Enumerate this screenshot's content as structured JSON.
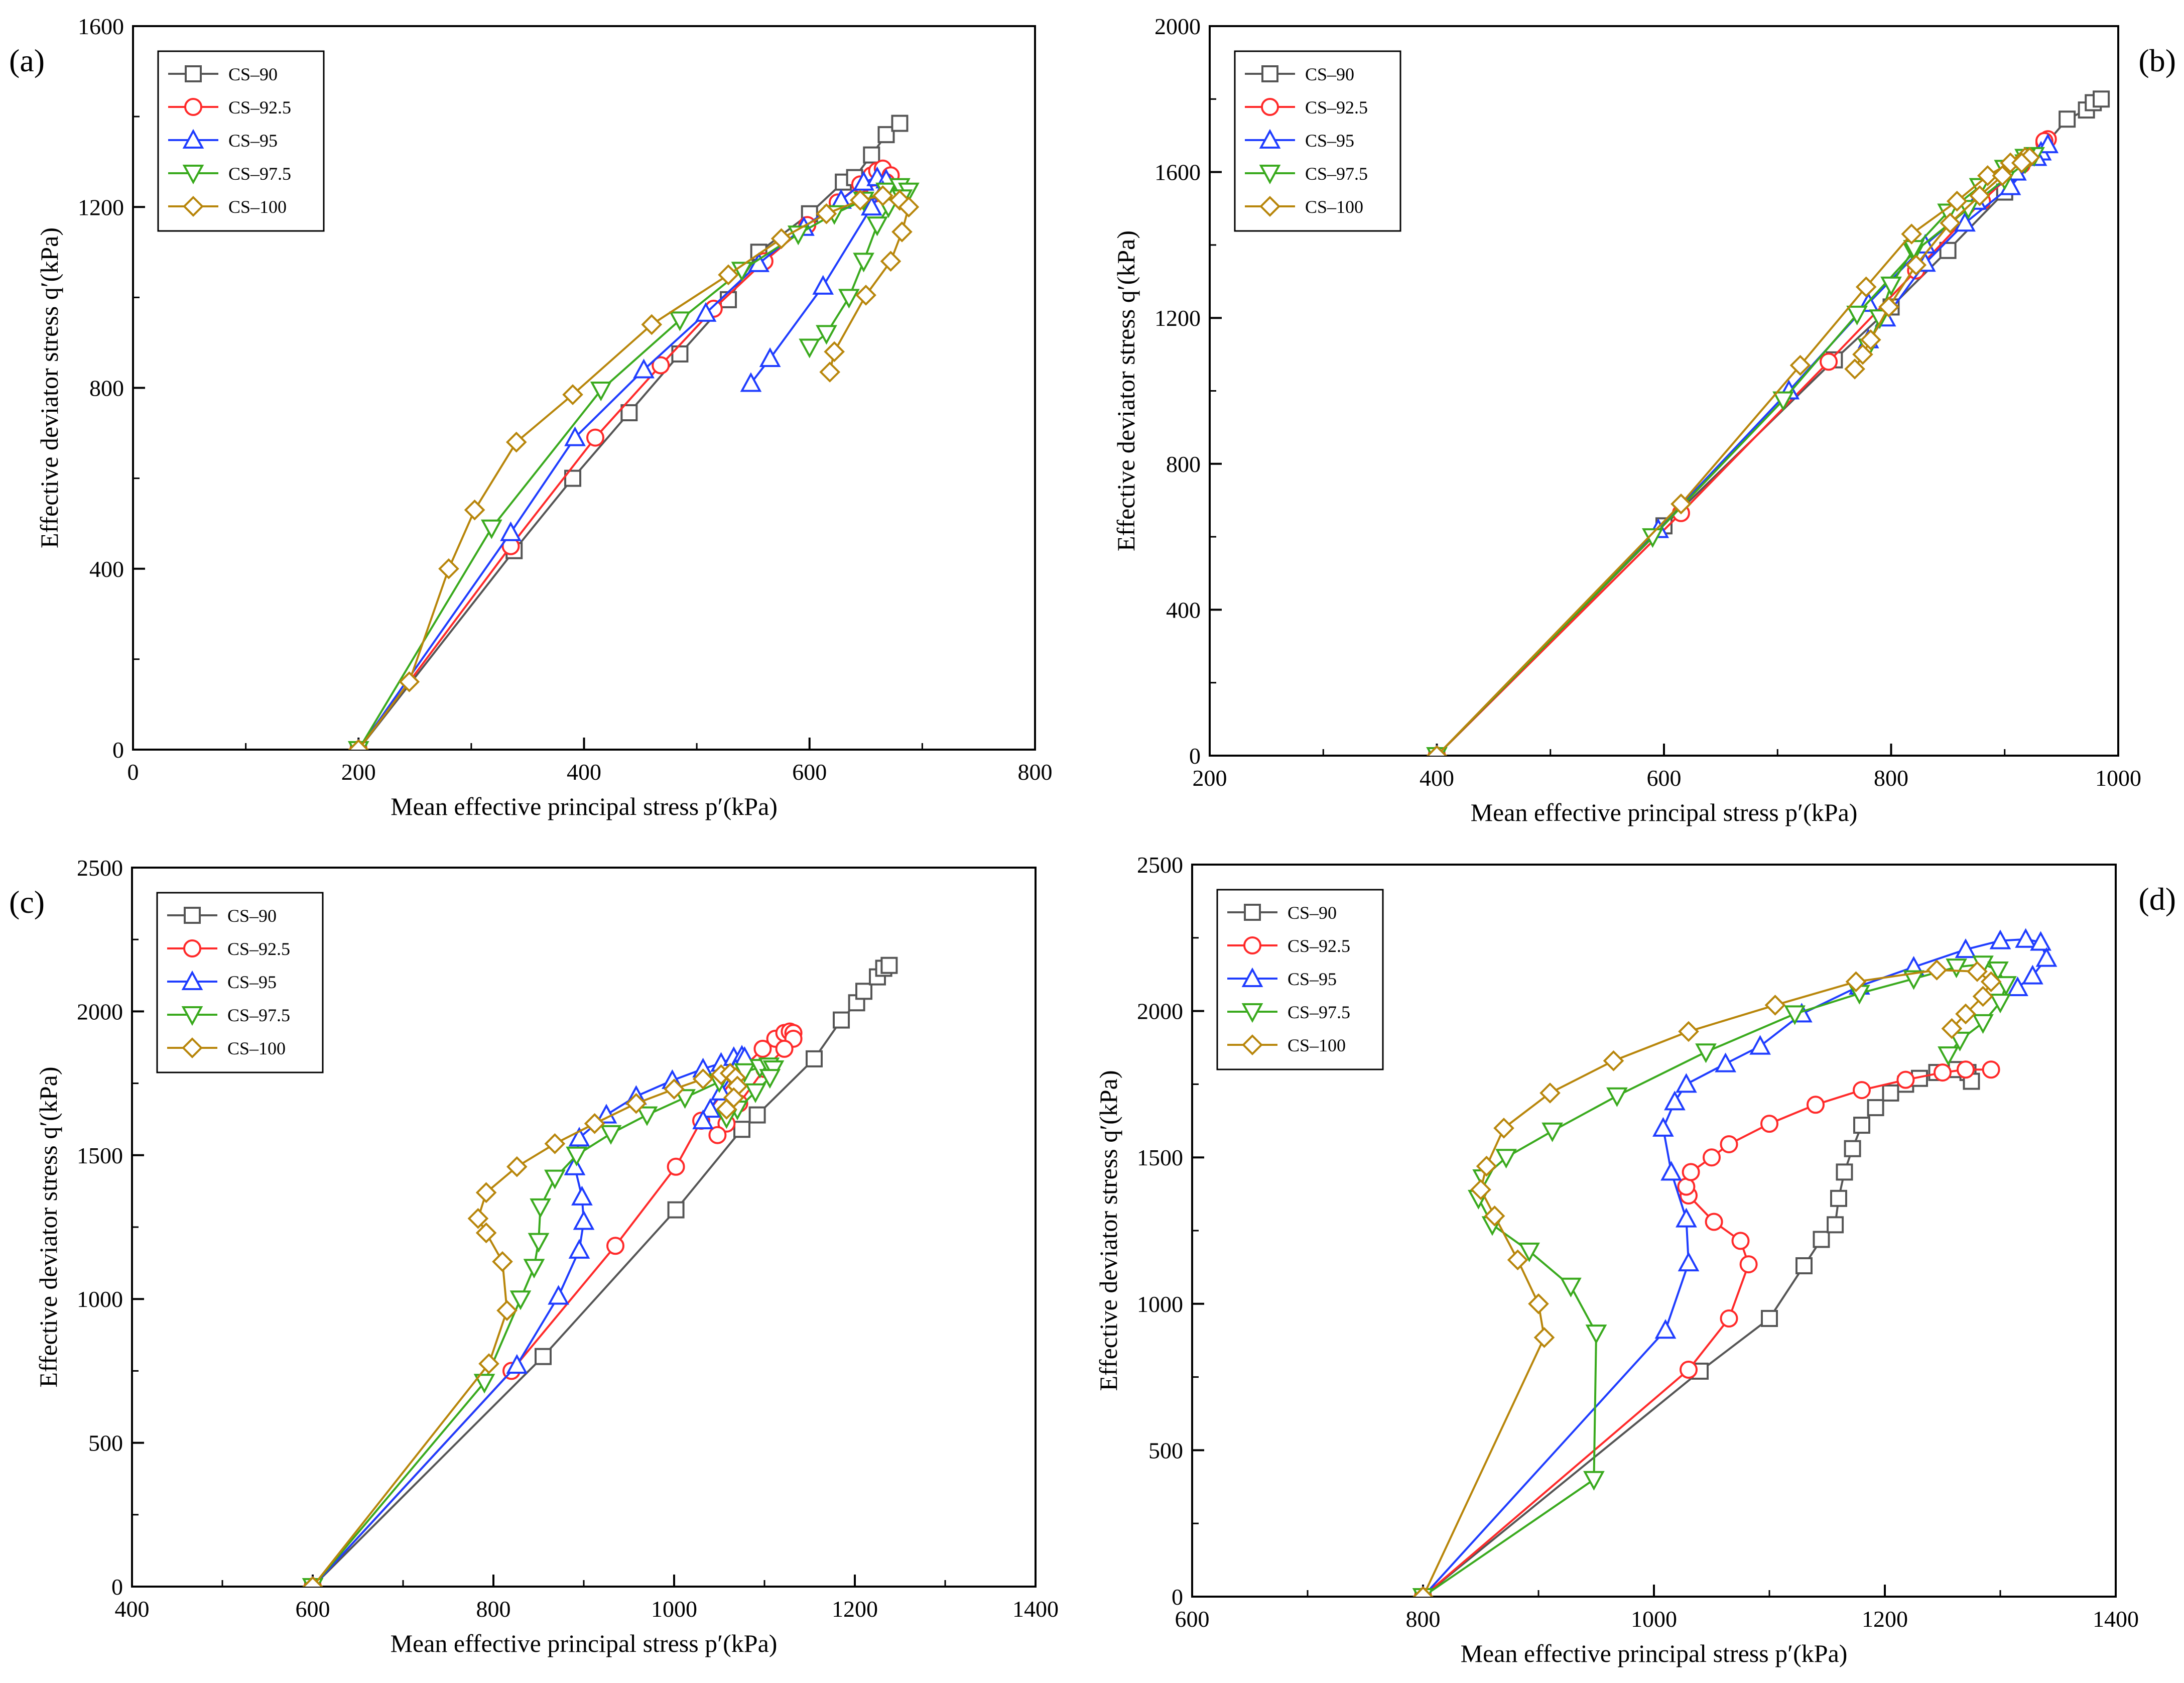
{
  "figure_title": "",
  "colors": {
    "CS-90": "#555555",
    "CS-92.5": "#ff2a2a",
    "CS-95": "#1f3dff",
    "CS-97.5": "#3aaa1e",
    "CS-100": "#b8860b"
  },
  "chart_data": [
    {
      "panel_label": "(a)",
      "type": "line",
      "xlabel": "Mean effective principal stress p′(kPa)",
      "ylabel": "Effective deviator stress q′(kPa)",
      "xlim": [
        0,
        800
      ],
      "ylim": [
        0,
        1600
      ],
      "xticks": [
        "0",
        "200",
        "400",
        "600",
        "800"
      ],
      "yticks": [
        "0",
        "400",
        "800",
        "1200",
        "1600"
      ],
      "legend_position": "top-left",
      "series": [
        {
          "name": "CS–90",
          "marker": "square",
          "x": [
            200,
            338,
            390,
            440,
            485,
            528,
            555,
            600,
            630,
            640,
            655,
            668,
            680
          ],
          "y": [
            0,
            440,
            600,
            745,
            875,
            995,
            1100,
            1185,
            1255,
            1265,
            1315,
            1360,
            1385
          ]
        },
        {
          "name": "CS–92.5",
          "marker": "circle",
          "x": [
            200,
            335,
            410,
            468,
            515,
            560,
            598,
            625,
            645,
            655,
            660,
            665,
            672,
            668,
            660,
            658
          ],
          "y": [
            0,
            450,
            690,
            850,
            975,
            1080,
            1160,
            1210,
            1250,
            1270,
            1280,
            1285,
            1270,
            1255,
            1240,
            1230
          ]
        },
        {
          "name": "CS–95",
          "marker": "triangle-up",
          "x": [
            200,
            335,
            392,
            453,
            508,
            555,
            595,
            628,
            648,
            660,
            668,
            665,
            655,
            612,
            565,
            548
          ],
          "y": [
            0,
            480,
            690,
            840,
            965,
            1075,
            1155,
            1215,
            1255,
            1265,
            1260,
            1235,
            1200,
            1025,
            865,
            810
          ]
        },
        {
          "name": "CS–97.5",
          "marker": "triangle-down",
          "x": [
            200,
            318,
            415,
            485,
            540,
            590,
            622,
            648,
            668,
            680,
            688,
            682,
            670,
            660,
            648,
            635,
            615,
            600
          ],
          "y": [
            0,
            490,
            795,
            950,
            1060,
            1140,
            1185,
            1215,
            1235,
            1245,
            1235,
            1220,
            1200,
            1160,
            1080,
            1000,
            920,
            890
          ]
        },
        {
          "name": "CS–100",
          "marker": "diamond",
          "x": [
            200,
            245,
            280,
            303,
            340,
            390,
            460,
            528,
            575,
            615,
            645,
            665,
            680,
            688,
            682,
            672,
            650,
            622,
            618
          ],
          "y": [
            0,
            150,
            400,
            530,
            680,
            785,
            940,
            1050,
            1130,
            1185,
            1215,
            1225,
            1215,
            1200,
            1145,
            1080,
            1005,
            880,
            835
          ]
        }
      ]
    },
    {
      "panel_label": "(b)",
      "type": "line",
      "xlabel": "Mean effective principal stress p′(kPa)",
      "ylabel": "Effective deviator stress q′(kPa)",
      "xlim": [
        200,
        1000
      ],
      "ylim": [
        0,
        2000
      ],
      "xticks": [
        "200",
        "400",
        "600",
        "800",
        "1000"
      ],
      "yticks": [
        "0",
        "400",
        "800",
        "1200",
        "1600",
        "2000"
      ],
      "legend_position": "top-left",
      "series": [
        {
          "name": "CS–90",
          "marker": "square",
          "x": [
            400,
            600,
            750,
            800,
            850,
            900,
            955,
            972,
            978,
            985
          ],
          "y": [
            0,
            630,
            1085,
            1230,
            1385,
            1545,
            1745,
            1770,
            1790,
            1800
          ]
        },
        {
          "name": "CS–92.5",
          "marker": "circle",
          "x": [
            400,
            615,
            745,
            822,
            880,
            915,
            935,
            938,
            935
          ],
          "y": [
            0,
            665,
            1080,
            1330,
            1520,
            1620,
            1680,
            1690,
            1685
          ]
        },
        {
          "name": "CS–95",
          "marker": "triangle-up",
          "x": [
            400,
            595,
            710,
            780,
            830,
            875,
            910,
            932,
            938,
            928,
            905,
            865,
            830,
            795,
            780
          ],
          "y": [
            0,
            620,
            1000,
            1240,
            1400,
            1520,
            1600,
            1655,
            1675,
            1640,
            1560,
            1460,
            1350,
            1200,
            1140
          ]
        },
        {
          "name": "CS–97.5",
          "marker": "triangle-down",
          "x": [
            400,
            590,
            705,
            770,
            820,
            868,
            900,
            918,
            926,
            918,
            900,
            878,
            850,
            820,
            800,
            790,
            780
          ],
          "y": [
            0,
            600,
            975,
            1210,
            1380,
            1500,
            1580,
            1625,
            1645,
            1640,
            1610,
            1560,
            1490,
            1390,
            1290,
            1200,
            1120
          ]
        },
        {
          "name": "CS–100",
          "marker": "diamond",
          "x": [
            400,
            615,
            720,
            778,
            818,
            858,
            885,
            905,
            918,
            922,
            915,
            898,
            878,
            852,
            822,
            798,
            782,
            775,
            768
          ],
          "y": [
            0,
            690,
            1070,
            1285,
            1430,
            1520,
            1590,
            1625,
            1640,
            1640,
            1625,
            1590,
            1535,
            1460,
            1345,
            1230,
            1140,
            1100,
            1060
          ]
        }
      ]
    },
    {
      "panel_label": "(c)",
      "type": "line",
      "xlabel": "Mean effective principal stress p′(kPa)",
      "ylabel": "Effective deviator stress q′(kPa)",
      "xlim": [
        400,
        1400
      ],
      "ylim": [
        0,
        2500
      ],
      "xticks": [
        "400",
        "600",
        "800",
        "1000",
        "1200",
        "1400"
      ],
      "yticks": [
        "0",
        "500",
        "1000",
        "1500",
        "2000",
        "2500"
      ],
      "legend_position": "top-left",
      "series": [
        {
          "name": "CS–90",
          "marker": "square",
          "x": [
            600,
            855,
            1002,
            1075,
            1092,
            1155,
            1185,
            1202,
            1210,
            1225,
            1232,
            1238
          ],
          "y": [
            0,
            800,
            1310,
            1590,
            1640,
            1835,
            1970,
            2030,
            2070,
            2120,
            2150,
            2160
          ]
        },
        {
          "name": "CS–92.5",
          "marker": "circle",
          "x": [
            600,
            820,
            935,
            1002,
            1030,
            1072,
            1098,
            1112,
            1122,
            1128,
            1132,
            1132,
            1122,
            1100,
            1072,
            1058,
            1048
          ],
          "y": [
            0,
            750,
            1185,
            1460,
            1620,
            1790,
            1870,
            1905,
            1925,
            1930,
            1925,
            1905,
            1870,
            1800,
            1680,
            1610,
            1570
          ]
        },
        {
          "name": "CS–95",
          "marker": "triangle-up",
          "x": [
            600,
            826,
            872,
            895,
            900,
            898,
            890,
            895,
            925,
            958,
            998,
            1032,
            1052,
            1066,
            1075,
            1078,
            1068,
            1052,
            1040,
            1032
          ],
          "y": [
            0,
            770,
            1010,
            1170,
            1270,
            1355,
            1460,
            1560,
            1640,
            1705,
            1760,
            1800,
            1820,
            1840,
            1845,
            1840,
            1800,
            1720,
            1660,
            1620
          ]
        },
        {
          "name": "CS–97.5",
          "marker": "triangle-down",
          "x": [
            600,
            790,
            830,
            845,
            850,
            852,
            868,
            892,
            930,
            970,
            1012,
            1050,
            1078,
            1095,
            1105,
            1110,
            1106,
            1090,
            1070,
            1058
          ],
          "y": [
            0,
            710,
            1000,
            1110,
            1200,
            1320,
            1420,
            1500,
            1575,
            1640,
            1700,
            1755,
            1790,
            1805,
            1810,
            1800,
            1770,
            1720,
            1660,
            1630
          ]
        },
        {
          "name": "CS–100",
          "marker": "diamond",
          "x": [
            600,
            795,
            815,
            810,
            792,
            783,
            792,
            826,
            868,
            912,
            958,
            1000,
            1032,
            1052,
            1062,
            1068,
            1070,
            1066,
            1058
          ],
          "y": [
            0,
            775,
            960,
            1130,
            1230,
            1280,
            1370,
            1460,
            1540,
            1610,
            1680,
            1730,
            1765,
            1780,
            1785,
            1770,
            1740,
            1700,
            1660
          ]
        }
      ]
    },
    {
      "panel_label": "(d)",
      "type": "line",
      "xlabel": "Mean effective principal stress p′(kPa)",
      "ylabel": "Effective deviator stress q′(kPa)",
      "xlim": [
        600,
        1400
      ],
      "ylim": [
        0,
        2500
      ],
      "xticks": [
        "600",
        "800",
        "1000",
        "1200",
        "1400"
      ],
      "yticks": [
        "0",
        "500",
        "1000",
        "1500",
        "2000",
        "2500"
      ],
      "legend_position": "top-left",
      "series": [
        {
          "name": "CS–90",
          "marker": "square",
          "x": [
            800,
            1040,
            1100,
            1130,
            1145,
            1157,
            1160,
            1165,
            1172,
            1180,
            1192,
            1205,
            1218,
            1230,
            1245,
            1262,
            1272,
            1275
          ],
          "y": [
            0,
            770,
            950,
            1130,
            1220,
            1270,
            1360,
            1450,
            1530,
            1610,
            1670,
            1720,
            1750,
            1770,
            1790,
            1800,
            1790,
            1760
          ]
        },
        {
          "name": "CS–92.5",
          "marker": "circle",
          "x": [
            800,
            1030,
            1065,
            1082,
            1075,
            1052,
            1030,
            1028,
            1032,
            1050,
            1065,
            1100,
            1140,
            1180,
            1218,
            1250,
            1270,
            1292
          ],
          "y": [
            0,
            775,
            950,
            1135,
            1215,
            1280,
            1370,
            1400,
            1450,
            1500,
            1545,
            1615,
            1680,
            1730,
            1765,
            1790,
            1800,
            1800
          ]
        },
        {
          "name": "CS–95",
          "marker": "triangle-up",
          "x": [
            800,
            1010,
            1030,
            1028,
            1015,
            1008,
            1018,
            1028,
            1062,
            1092,
            1128,
            1178,
            1225,
            1270,
            1300,
            1322,
            1335,
            1340,
            1328,
            1315
          ],
          "y": [
            0,
            910,
            1140,
            1290,
            1450,
            1600,
            1690,
            1750,
            1820,
            1880,
            1990,
            2085,
            2150,
            2210,
            2240,
            2245,
            2235,
            2180,
            2120,
            2080
          ]
        },
        {
          "name": "CS–97.5",
          "marker": "triangle-down",
          "x": [
            800,
            948,
            950,
            928,
            892,
            860,
            848,
            852,
            872,
            912,
            968,
            1045,
            1122,
            1178,
            1225,
            1262,
            1285,
            1298,
            1305,
            1300,
            1285,
            1265,
            1255
          ],
          "y": [
            0,
            400,
            900,
            1060,
            1180,
            1270,
            1360,
            1430,
            1500,
            1590,
            1710,
            1860,
            1990,
            2060,
            2110,
            2150,
            2160,
            2140,
            2090,
            2030,
            1960,
            1900,
            1850
          ]
        },
        {
          "name": "CS–100",
          "marker": "diamond",
          "x": [
            800,
            905,
            900,
            882,
            862,
            850,
            855,
            870,
            910,
            965,
            1030,
            1105,
            1175,
            1245,
            1280,
            1292,
            1285,
            1270,
            1258
          ],
          "y": [
            0,
            885,
            1000,
            1150,
            1300,
            1390,
            1470,
            1600,
            1720,
            1830,
            1930,
            2020,
            2100,
            2140,
            2135,
            2100,
            2050,
            1990,
            1940
          ]
        }
      ]
    }
  ]
}
